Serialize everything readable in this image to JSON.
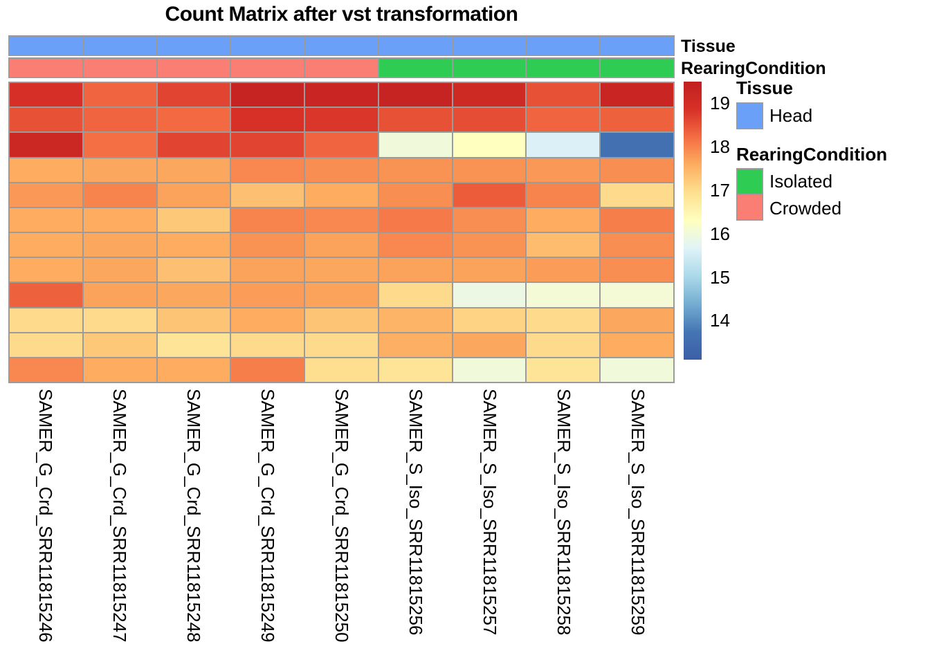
{
  "title": "Count Matrix after vst transformation",
  "annotation_bars": [
    {
      "name": "Tissue",
      "values": [
        "Head",
        "Head",
        "Head",
        "Head",
        "Head",
        "Head",
        "Head",
        "Head",
        "Head"
      ]
    },
    {
      "name": "RearingCondition",
      "values": [
        "Crowded",
        "Crowded",
        "Crowded",
        "Crowded",
        "Crowded",
        "Isolated",
        "Isolated",
        "Isolated",
        "Isolated"
      ]
    }
  ],
  "annotation_colors": {
    "Head": "#6ba0f9",
    "Isolated": "#2ecc52",
    "Crowded": "#fa7e74"
  },
  "legend_groups": [
    {
      "title": "Tissue",
      "items": [
        {
          "label": "Head",
          "color": "#6ba0f9"
        }
      ]
    },
    {
      "title": "RearingCondition",
      "items": [
        {
          "label": "Isolated",
          "color": "#2ecc52"
        },
        {
          "label": "Crowded",
          "color": "#fa7e74"
        }
      ]
    }
  ],
  "colorbar": {
    "tick_labels": [
      "19",
      "18",
      "17",
      "16",
      "15",
      "14"
    ],
    "tick_values": [
      19,
      18,
      17,
      16,
      15,
      14
    ]
  },
  "chart_data": {
    "type": "heatmap",
    "title": "Count Matrix after vst transformation",
    "columns": [
      "SAMER_G_Crd_SRR11815246",
      "SAMER_G_Crd_SRR11815247",
      "SAMER_G_Crd_SRR11815248",
      "SAMER_G_Crd_SRR11815249",
      "SAMER_G_Crd_SRR11815250",
      "SAMER_S_Iso_SRR11815256",
      "SAMER_S_Iso_SRR11815257",
      "SAMER_S_Iso_SRR11815258",
      "SAMER_S_Iso_SRR11815259"
    ],
    "column_annotations": {
      "Tissue": [
        "Head",
        "Head",
        "Head",
        "Head",
        "Head",
        "Head",
        "Head",
        "Head",
        "Head"
      ],
      "RearingCondition": [
        "Crowded",
        "Crowded",
        "Crowded",
        "Crowded",
        "Crowded",
        "Isolated",
        "Isolated",
        "Isolated",
        "Isolated"
      ]
    },
    "n_rows": 12,
    "row_labels_shown": false,
    "values": [
      [
        18.9,
        18.3,
        18.65,
        19.35,
        19.25,
        19.35,
        19.1,
        18.5,
        19.25
      ],
      [
        18.5,
        18.3,
        18.25,
        18.85,
        18.8,
        18.5,
        18.55,
        18.3,
        18.35
      ],
      [
        19.2,
        18.2,
        18.65,
        18.65,
        18.3,
        16.0,
        16.3,
        15.6,
        13.6
      ],
      [
        17.6,
        17.65,
        17.65,
        17.95,
        17.9,
        17.85,
        17.85,
        17.8,
        17.9
      ],
      [
        17.8,
        18.0,
        17.7,
        17.35,
        17.6,
        17.9,
        18.4,
        18.0,
        17.0
      ],
      [
        17.6,
        17.6,
        17.25,
        18.0,
        17.95,
        18.1,
        17.9,
        17.6,
        18.05
      ],
      [
        17.6,
        17.65,
        17.6,
        17.85,
        17.7,
        17.95,
        17.85,
        17.4,
        17.9
      ],
      [
        17.6,
        17.65,
        17.35,
        17.7,
        17.65,
        17.7,
        17.7,
        17.75,
        17.9
      ],
      [
        18.35,
        17.7,
        17.65,
        17.75,
        17.7,
        17.0,
        15.9,
        16.05,
        16.05
      ],
      [
        17.0,
        17.0,
        17.3,
        17.6,
        17.3,
        17.5,
        17.1,
        17.0,
        17.65
      ],
      [
        17.0,
        17.25,
        16.85,
        17.0,
        17.0,
        17.55,
        17.65,
        17.0,
        17.6
      ],
      [
        17.95,
        17.6,
        17.6,
        18.05,
        16.95,
        16.85,
        16.0,
        16.85,
        16.0
      ]
    ],
    "color_scale": {
      "palette": "RdYlBu reversed",
      "vmin": 13.1,
      "vmax": 19.5,
      "stops": [
        {
          "v": 13.1,
          "c": "#3a5fa5"
        },
        {
          "v": 13.74,
          "c": "#4575b4"
        },
        {
          "v": 14.38,
          "c": "#74add1"
        },
        {
          "v": 15.02,
          "c": "#abd9e9"
        },
        {
          "v": 15.66,
          "c": "#e0f3f8"
        },
        {
          "v": 16.3,
          "c": "#ffffbf"
        },
        {
          "v": 16.94,
          "c": "#fee090"
        },
        {
          "v": 17.58,
          "c": "#fdae61"
        },
        {
          "v": 18.22,
          "c": "#f46d43"
        },
        {
          "v": 18.86,
          "c": "#d73027"
        },
        {
          "v": 19.5,
          "c": "#c02020"
        }
      ]
    },
    "legend_position": "right",
    "grid": true,
    "grid_color": "#9b9b9b"
  }
}
